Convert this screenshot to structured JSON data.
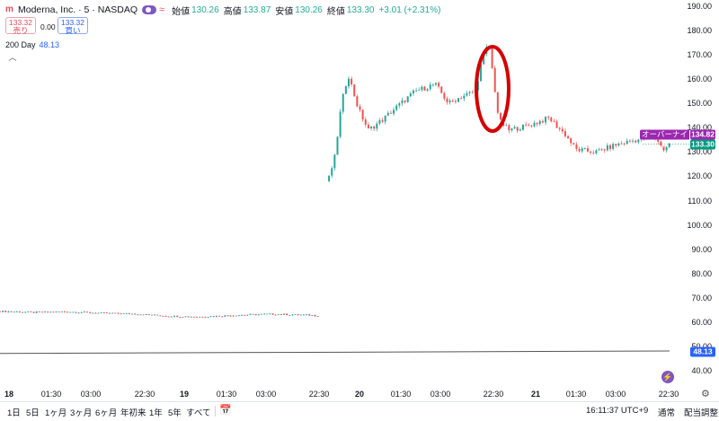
{
  "header": {
    "symbol": "Moderna, Inc. · 5 · NASDAQ",
    "open_label": "始値",
    "open": "130.26",
    "high_label": "高値",
    "high": "133.87",
    "low_label": "安値",
    "low": "130.26",
    "close_label": "終値",
    "close": "133.30",
    "change": "+3.01 (+2.31%)"
  },
  "trade": {
    "sell_price": "133.32",
    "sell_label": "売り",
    "spread": "0.00",
    "buy_price": "133.32",
    "buy_label": "買い"
  },
  "indicator": {
    "name": "200 Day",
    "value": "48.13"
  },
  "price_axis": {
    "ticks": [
      "190.00",
      "180.00",
      "170.00",
      "160.00",
      "150.00",
      "140.00",
      "130.00",
      "120.00",
      "110.00",
      "100.00",
      "90.00",
      "80.00",
      "70.00",
      "60.00",
      "50.00",
      "40.00"
    ],
    "overnight_label": "オーバーナイト",
    "overnight_price": "134.82",
    "last_price": "133.30",
    "ma_price": "48.13"
  },
  "time_axis": {
    "ticks": [
      {
        "label": "18",
        "bold": true
      },
      {
        "label": "01:30",
        "bold": false
      },
      {
        "label": "03:00",
        "bold": false
      },
      {
        "label": "22:30",
        "bold": false
      },
      {
        "label": "19",
        "bold": true
      },
      {
        "label": "01:30",
        "bold": false
      },
      {
        "label": "03:00",
        "bold": false
      },
      {
        "label": "22:30",
        "bold": false
      },
      {
        "label": "20",
        "bold": true
      },
      {
        "label": "01:30",
        "bold": false
      },
      {
        "label": "03:00",
        "bold": false
      },
      {
        "label": "22:30",
        "bold": false
      },
      {
        "label": "21",
        "bold": true
      },
      {
        "label": "01:30",
        "bold": false
      },
      {
        "label": "03:00",
        "bold": false
      },
      {
        "label": "22:30",
        "bold": false
      }
    ]
  },
  "toolbar": {
    "ranges": [
      "1日",
      "5日",
      "1ヶ月",
      "3ヶ月",
      "6ヶ月",
      "年初来",
      "1年",
      "5年",
      "すべて"
    ],
    "time": "16:11:37 UTC+9",
    "session": "通常",
    "adjust": "配当調整"
  },
  "colors": {
    "up": "#26a69a",
    "down": "#ef5350",
    "ma": "#555555",
    "highlight": "#d50000",
    "overnight": "#9c27b0",
    "last": "#089981",
    "ma_tag": "#2962ff"
  },
  "chart_data": {
    "type": "candlestick",
    "symbol": "MRNA",
    "interval": "5",
    "y_range": [
      38,
      192
    ],
    "sessions": [
      "18",
      "19",
      "20",
      "21"
    ],
    "close_path": [
      {
        "x": 0.0,
        "y": 64.5
      },
      {
        "x": 0.05,
        "y": 64.0
      },
      {
        "x": 0.1,
        "y": 64.3
      },
      {
        "x": 0.15,
        "y": 63.7
      },
      {
        "x": 0.2,
        "y": 63.4
      },
      {
        "x": 0.25,
        "y": 62.5
      },
      {
        "x": 0.3,
        "y": 62.2
      },
      {
        "x": 0.35,
        "y": 62.8
      },
      {
        "x": 0.4,
        "y": 63.3
      },
      {
        "x": 0.45,
        "y": 63.0
      },
      {
        "x": 0.48,
        "y": 62.6
      },
      {
        "x": 0.49,
        "y": 118
      },
      {
        "x": 0.5,
        "y": 128
      },
      {
        "x": 0.51,
        "y": 150
      },
      {
        "x": 0.52,
        "y": 162
      },
      {
        "x": 0.535,
        "y": 148
      },
      {
        "x": 0.55,
        "y": 139
      },
      {
        "x": 0.57,
        "y": 143
      },
      {
        "x": 0.59,
        "y": 148
      },
      {
        "x": 0.62,
        "y": 155
      },
      {
        "x": 0.65,
        "y": 158
      },
      {
        "x": 0.67,
        "y": 150
      },
      {
        "x": 0.69,
        "y": 153
      },
      {
        "x": 0.71,
        "y": 155
      },
      {
        "x": 0.72,
        "y": 168
      },
      {
        "x": 0.73,
        "y": 175
      },
      {
        "x": 0.745,
        "y": 143
      },
      {
        "x": 0.76,
        "y": 139
      },
      {
        "x": 0.79,
        "y": 141
      },
      {
        "x": 0.82,
        "y": 144
      },
      {
        "x": 0.845,
        "y": 137
      },
      {
        "x": 0.86,
        "y": 131
      },
      {
        "x": 0.89,
        "y": 130
      },
      {
        "x": 0.92,
        "y": 133
      },
      {
        "x": 0.95,
        "y": 135
      },
      {
        "x": 0.98,
        "y": 136
      },
      {
        "x": 0.99,
        "y": 131
      },
      {
        "x": 1.0,
        "y": 133.3
      }
    ],
    "ma_200": 48.13
  }
}
